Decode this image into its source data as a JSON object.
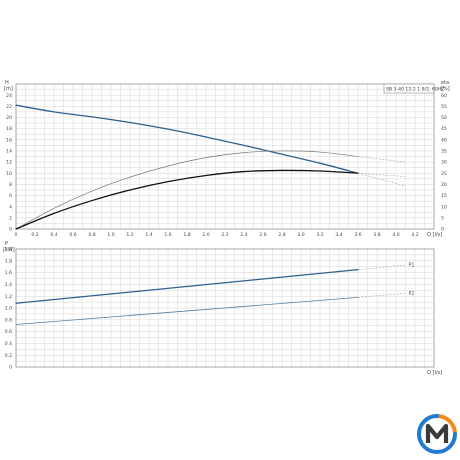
{
  "colors": {
    "grid": "#d6d6d6",
    "frame": "#8a8a8a",
    "head": "#2e5f8f",
    "efficiency": "#777777",
    "npsh": "#111111",
    "p1": "#2e5f8f",
    "p2": "#4f7fa8",
    "dashed": "#b0b0b0",
    "logo_blue": "#1f7ad0",
    "logo_orange": "#f28a1c",
    "logo_dark": "#3a3a3a"
  },
  "logo": {
    "icon": "m-logo-icon"
  },
  "chart_data": [
    {
      "type": "line",
      "model_label": "SB 3-40 12-2 1 9/2, 60HZ",
      "left_unit_top": "H",
      "left_unit_bottom": "[m]",
      "right_unit_top": "eta",
      "right_unit_bottom": "[%]",
      "xlabel": "Q [l/s]",
      "xlim": [
        0,
        4.4
      ],
      "x_ticks": [
        "0",
        "0.2",
        "0.4",
        "0.6",
        "0.8",
        "1.0",
        "1.2",
        "1.4",
        "1.6",
        "1.8",
        "2.0",
        "2.2",
        "2.4",
        "2.6",
        "2.8",
        "3.0",
        "3.2",
        "3.4",
        "3.6",
        "3.8",
        "4.0",
        "4.2"
      ],
      "ylim": [
        0,
        26
      ],
      "y_ticks": [
        "0",
        "2",
        "4",
        "6",
        "8",
        "10",
        "12",
        "14",
        "16",
        "18",
        "20",
        "22",
        "24"
      ],
      "y2lim": [
        0,
        65
      ],
      "y2_ticks": [
        "0",
        "5",
        "10",
        "15",
        "20",
        "25",
        "30",
        "35",
        "40",
        "45",
        "50",
        "55",
        "60"
      ],
      "grid": true,
      "series": [
        {
          "key": "head",
          "axis": "left",
          "x": [
            0,
            0.4,
            0.8,
            1.2,
            1.6,
            2.0,
            2.4,
            2.8,
            3.2,
            3.6
          ],
          "y": [
            22.2,
            21.0,
            20.1,
            19.1,
            17.9,
            16.5,
            15.0,
            13.4,
            11.8,
            10.0
          ],
          "ext_x": [
            3.6,
            4.1
          ],
          "ext_y": [
            10.0,
            7.7
          ]
        },
        {
          "key": "efficiency",
          "axis": "left",
          "x": [
            0,
            0.4,
            0.8,
            1.2,
            1.6,
            2.0,
            2.4,
            2.8,
            3.2,
            3.6
          ],
          "y": [
            0,
            3.7,
            6.8,
            9.3,
            11.3,
            12.8,
            13.7,
            14.0,
            13.8,
            13.0
          ],
          "ext_x": [
            3.6,
            4.1
          ],
          "ext_y": [
            13.0,
            12.0
          ]
        },
        {
          "key": "npsh",
          "axis": "left",
          "x": [
            0,
            0.4,
            0.8,
            1.2,
            1.6,
            2.0,
            2.4,
            2.8,
            3.2,
            3.6
          ],
          "y": [
            0,
            2.8,
            5.1,
            7.0,
            8.5,
            9.6,
            10.3,
            10.5,
            10.4,
            10.0
          ],
          "ext_x": [
            3.6,
            4.1
          ],
          "ext_y": [
            10.0,
            9.4
          ]
        }
      ]
    },
    {
      "type": "line",
      "left_unit_top": "P",
      "left_unit_bottom": "[kW]",
      "xlabel": "Q [l/s]",
      "xlim": [
        0,
        4.4
      ],
      "ylim": [
        0,
        2.0
      ],
      "y_ticks": [
        "0",
        "0.2",
        "0.4",
        "0.6",
        "0.8",
        "1.0",
        "1.2",
        "1.4",
        "1.6",
        "1.8",
        "2.0"
      ],
      "grid": true,
      "series": [
        {
          "key": "p1",
          "name": "P1",
          "x": [
            0,
            3.6
          ],
          "y": [
            1.08,
            1.65
          ],
          "ext_x": [
            3.6,
            4.1
          ],
          "ext_y": [
            1.65,
            1.73
          ]
        },
        {
          "key": "p2",
          "name": "P2",
          "x": [
            0,
            3.6
          ],
          "y": [
            0.72,
            1.18
          ],
          "ext_x": [
            3.6,
            4.1
          ],
          "ext_y": [
            1.18,
            1.25
          ]
        }
      ]
    }
  ]
}
